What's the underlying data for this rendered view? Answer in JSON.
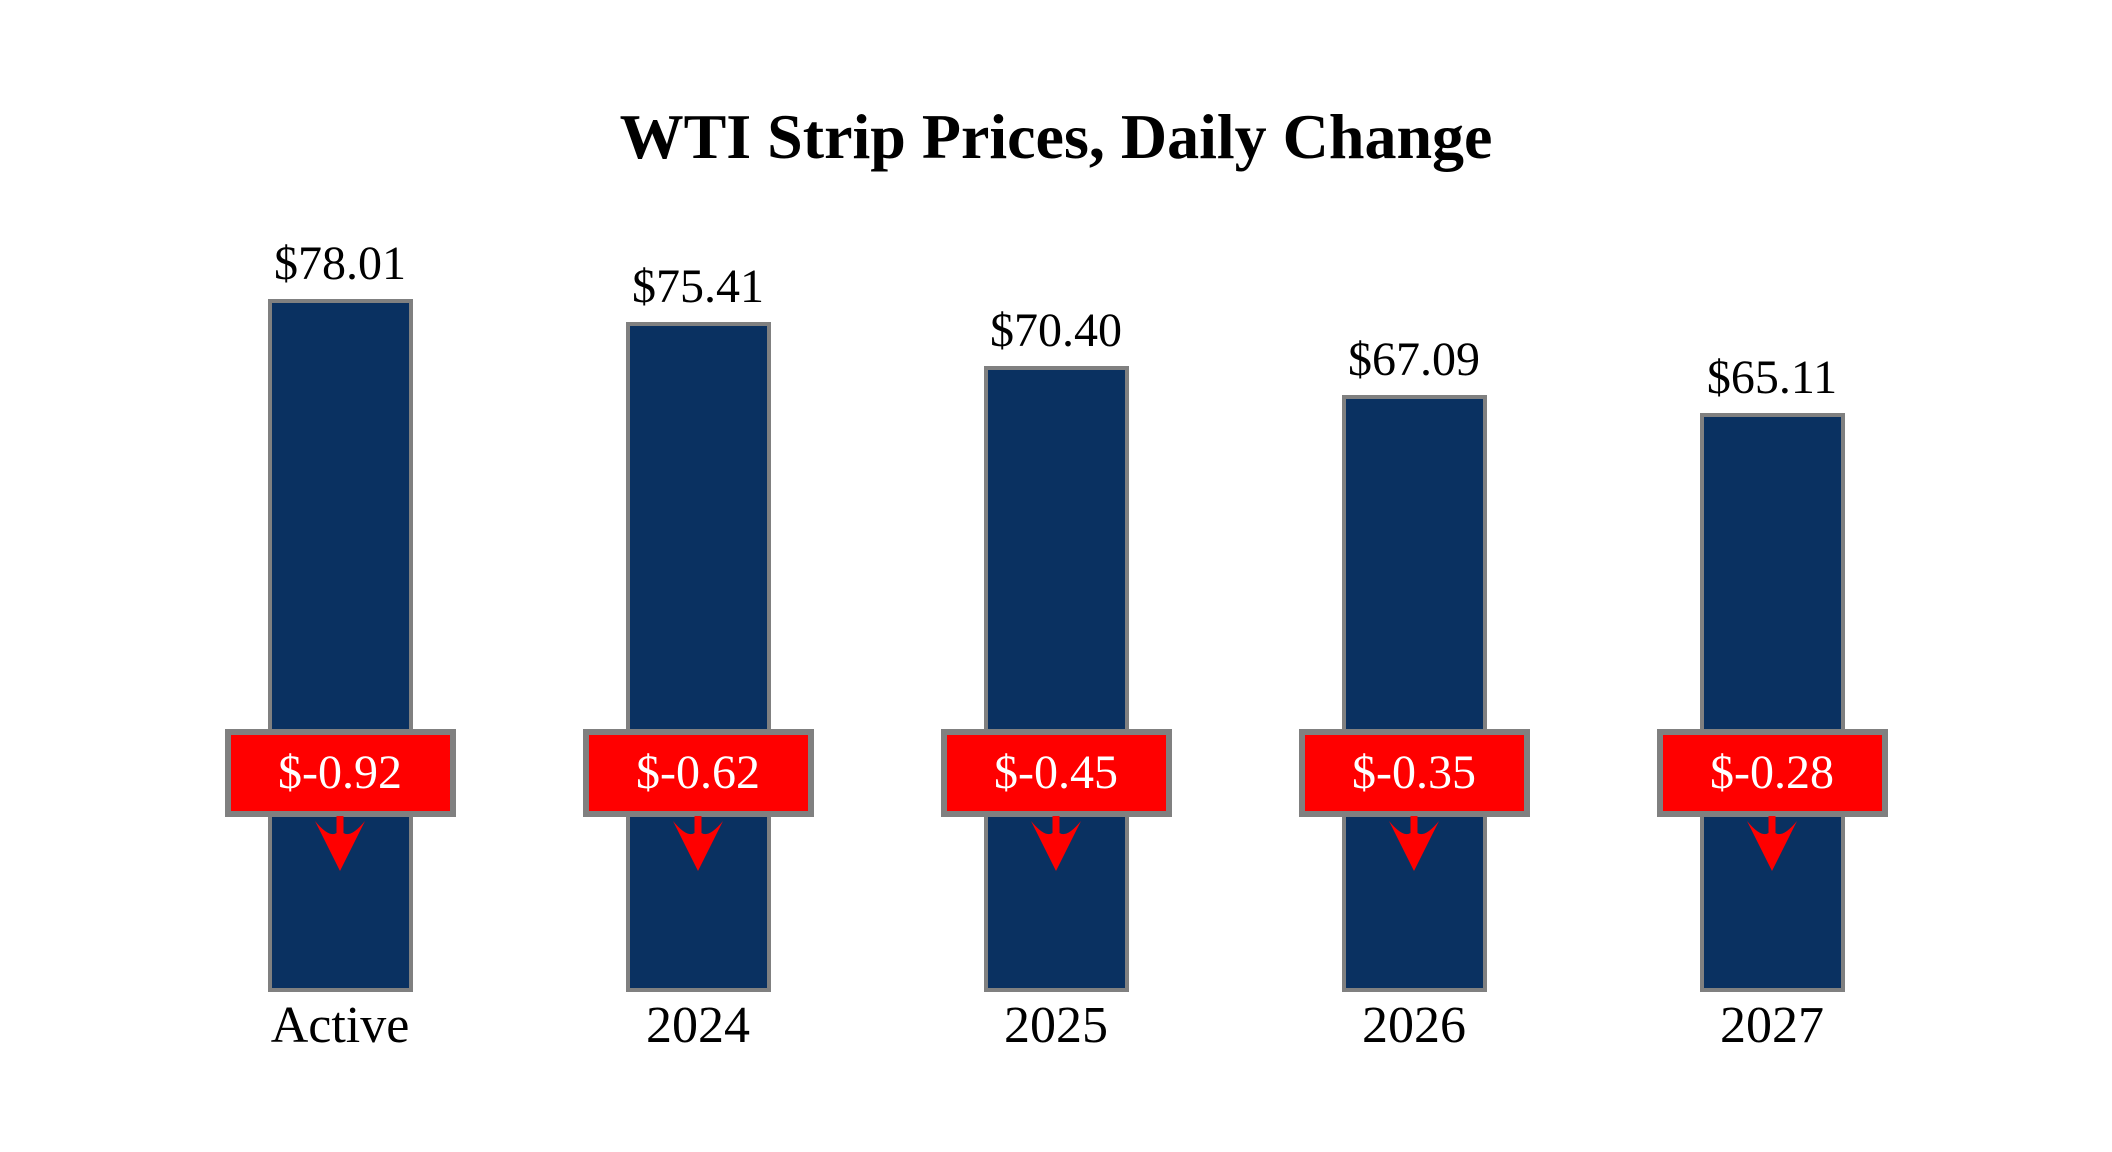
{
  "chart_data": {
    "type": "bar",
    "title": "WTI Strip Prices, Daily Change",
    "categories": [
      "Active",
      "2024",
      "2025",
      "2026",
      "2027"
    ],
    "series": [
      {
        "name": "WTI Strip Price",
        "values": [
          78.01,
          75.41,
          70.4,
          67.09,
          65.11
        ]
      },
      {
        "name": "Daily Change",
        "values": [
          -0.92,
          -0.62,
          -0.45,
          -0.35,
          -0.28
        ]
      }
    ],
    "price_labels": [
      "$78.01",
      "$75.41",
      "$70.40",
      "$67.09",
      "$65.11"
    ],
    "change_labels": [
      "$-0.92",
      "$-0.62",
      "$-0.45",
      "$-0.35",
      "$-0.28"
    ],
    "change_direction": "down",
    "xlabel": "",
    "ylabel": "",
    "ylim": [
      0,
      80
    ],
    "grid": false,
    "legend": "none",
    "colors": {
      "bar_fill": "#0A3161",
      "bar_border": "#808080",
      "change_box_fill": "#FF0000",
      "change_box_border": "#808080",
      "change_text": "#FFFFFF",
      "arrow": "#FF0000",
      "label_text": "#000000",
      "title_text": "#000000",
      "background": "#FFFFFF"
    }
  }
}
